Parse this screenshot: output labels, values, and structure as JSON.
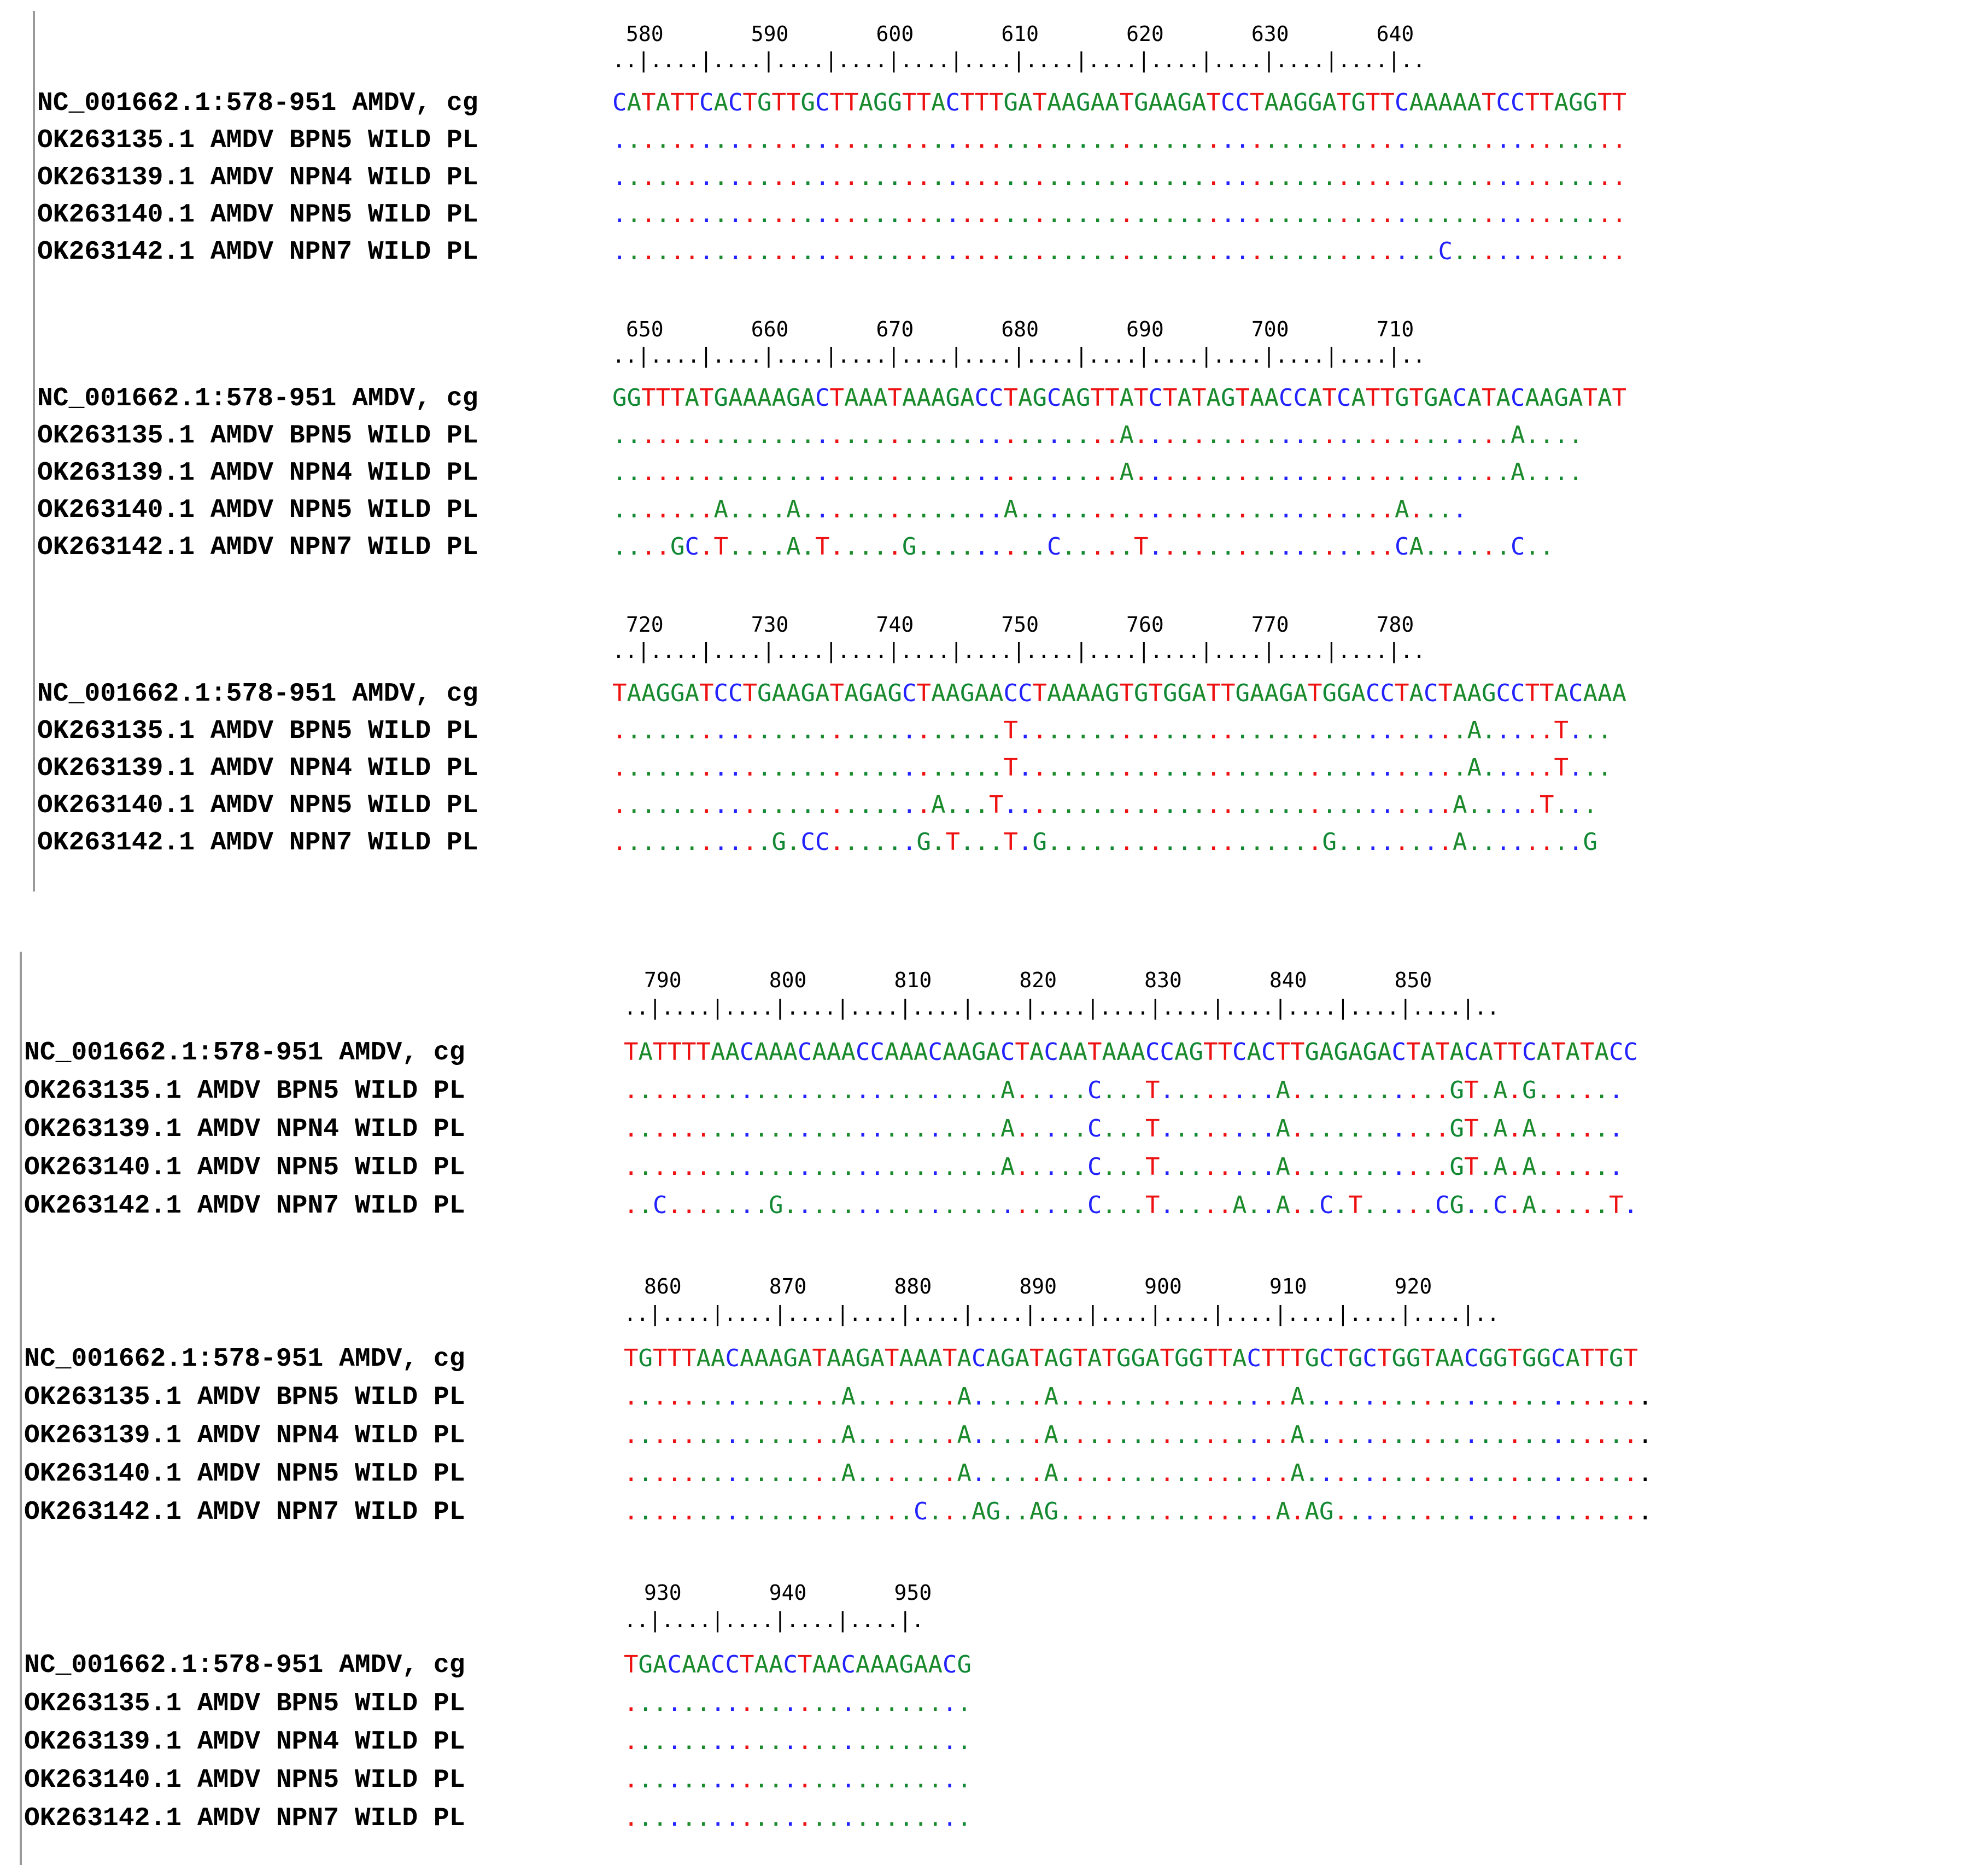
{
  "colors": {
    "A": "#1a8a2a",
    "C": "#2222ff",
    "G": "#118833",
    "T": "#ee1111",
    "border": "#9a9a9a"
  },
  "panels": [
    {
      "blocks": [
        {
          "ruler_numbers": "580       590       600       610       620       630       640",
          "ruler_ticks": "..|....|....|....|....|....|....|....|....|....|....|....|....|..",
          "rows": [
            {
              "label": "NC_001662.1:578-951 AMDV, cg",
              "sequence": "CATATTCACTGTTGCTTAGGTTACTTTGATAAGAATGAAGATCCTAAGGATGTTCAAAAATCCTTAGGTT"
            },
            {
              "label": "OK263135.1 AMDV BPN5 WILD PL",
              "sequence": "......................................................................"
            },
            {
              "label": "OK263139.1 AMDV NPN4 WILD PL",
              "sequence": "......................................................................"
            },
            {
              "label": "OK263140.1 AMDV NPN5 WILD PL",
              "sequence": "......................................................................"
            },
            {
              "label": "OK263142.1 AMDV NPN7 WILD PL",
              "sequence": ".........................................................C............"
            }
          ]
        },
        {
          "ruler_numbers": "650       660       670       680       690       700       710",
          "ruler_ticks": "..|....|....|....|....|....|....|....|....|....|....|....|....|..",
          "rows": [
            {
              "label": "NC_001662.1:578-951 AMDV, cg",
              "sequence": "GGTTTATGAAAAGACTAAATAAAGACCTAGCAGTTATCTATAGTAACCATCATTGTGACATACAAGATAT"
            },
            {
              "label": "OK263135.1 AMDV BPN5 WILD PL",
              "sequence": "...................................A..........................A...."
            },
            {
              "label": "OK263139.1 AMDV NPN4 WILD PL",
              "sequence": "...................................A..........................A...."
            },
            {
              "label": "OK263140.1 AMDV NPN5 WILD PL",
              "sequence": ".......A....A..............A..........................A...."
            },
            {
              "label": "OK263142.1 AMDV NPN7 WILD PL",
              "sequence": "....GC.T....A.T.....G.........C.....T.................CA......C.."
            }
          ]
        },
        {
          "ruler_numbers": "720       730       740       750       760       770       780",
          "ruler_ticks": "..|....|....|....|....|....|....|....|....|....|....|....|....|..",
          "rows": [
            {
              "label": "NC_001662.1:578-951 AMDV, cg",
              "sequence": "TAAGGATCCTGAAGATAGAGCTAAGAACCTAAAAGTGTGGATTGAAGATGGACCTACTAAGCCTTACAAA"
            },
            {
              "label": "OK263135.1 AMDV BPN5 WILD PL",
              "sequence": "...........................T...............................A.....T..."
            },
            {
              "label": "OK263139.1 AMDV NPN4 WILD PL",
              "sequence": "...........................T...............................A.....T..."
            },
            {
              "label": "OK263140.1 AMDV NPN5 WILD PL",
              "sequence": "......................A...T...............................A.....T..."
            },
            {
              "label": "OK263142.1 AMDV NPN7 WILD PL",
              "sequence": "...........G.CC......G.T...T.G...................G........A........G"
            }
          ]
        }
      ]
    },
    {
      "blocks": [
        {
          "ruler_numbers": "790       800       810       820       830       840       850",
          "ruler_ticks": "..|....|....|....|....|....|....|....|....|....|....|....|....|....|..",
          "rows": [
            {
              "label": "NC_001662.1:578-951 AMDV, cg",
              "sequence": "TATTTTAACAAACAAACCAAACAAGACTACAATAAACCAGTTCACTTGAGAGACTATACATTCATATACC"
            },
            {
              "label": "OK263135.1 AMDV BPN5 WILD PL",
              "sequence": "..........................A.....C...T........A...........GT.A.G......"
            },
            {
              "label": "OK263139.1 AMDV NPN4 WILD PL",
              "sequence": "..........................A.....C...T........A...........GT.A.A......"
            },
            {
              "label": "OK263140.1 AMDV NPN5 WILD PL",
              "sequence": "..........................A.....C...T........A...........GT.A.A......"
            },
            {
              "label": "OK263142.1 AMDV NPN7 WILD PL",
              "sequence": "..C.......G.....................C...T.....A..A..C.T.....CG..C.A.....T."
            }
          ]
        },
        {
          "ruler_numbers": "860       870       880       890       900       910       920",
          "ruler_ticks": "..|....|....|....|....|....|....|....|....|....|....|....|....|....|..",
          "rows": [
            {
              "label": "NC_001662.1:578-951 AMDV, cg",
              "sequence": "TGTTTAACAAAGATAAGATAAATACAGATAGTATGGATGGTTACTTTGCTGCTGGTAACGGTGGCATTGT"
            },
            {
              "label": "OK263135.1 AMDV BPN5 WILD PL",
              "sequence": "...............A.......A.....A................A........................"
            },
            {
              "label": "OK263139.1 AMDV NPN4 WILD PL",
              "sequence": "...............A.......A.....A................A........................"
            },
            {
              "label": "OK263140.1 AMDV NPN5 WILD PL",
              "sequence": "...............A.......A.....A................A........................"
            },
            {
              "label": "OK263142.1 AMDV NPN7 WILD PL",
              "sequence": "....................C...AG..AG...............A.AG......................"
            }
          ]
        },
        {
          "ruler_numbers": "930       940       950",
          "ruler_ticks": "..|....|....|....|....|.",
          "rows": [
            {
              "label": "NC_001662.1:578-951 AMDV, cg",
              "sequence": "TGACAACCTAACTAACAAAGAACG"
            },
            {
              "label": "OK263135.1 AMDV BPN5 WILD PL",
              "sequence": "........................"
            },
            {
              "label": "OK263139.1 AMDV NPN4 WILD PL",
              "sequence": "........................"
            },
            {
              "label": "OK263140.1 AMDV NPN5 WILD PL",
              "sequence": "........................"
            },
            {
              "label": "OK263142.1 AMDV NPN7 WILD PL",
              "sequence": "........................"
            }
          ]
        }
      ]
    }
  ]
}
